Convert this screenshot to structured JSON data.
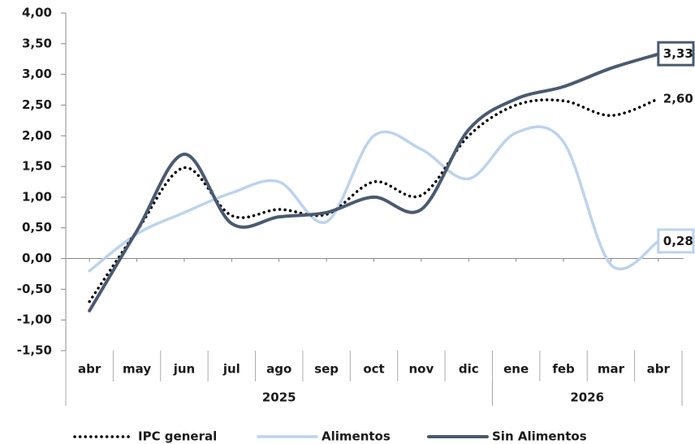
{
  "chart_data": {
    "type": "line",
    "categories": [
      "abr",
      "may",
      "jun",
      "jul",
      "ago",
      "sep",
      "oct",
      "nov",
      "dic",
      "ene",
      "feb",
      "mar",
      "abr"
    ],
    "groups": [
      {
        "label": "2025",
        "span": 9
      },
      {
        "label": "2026",
        "span": 4
      }
    ],
    "ylim": [
      -1.5,
      4.0
    ],
    "yticks": [
      {
        "value": -1.5,
        "label": "-1,50"
      },
      {
        "value": -1.0,
        "label": "-1,00"
      },
      {
        "value": -0.5,
        "label": "-0,50"
      },
      {
        "value": 0,
        "label": "0,00"
      },
      {
        "value": 0.5,
        "label": "0,50"
      },
      {
        "value": 1.0,
        "label": "1,00"
      },
      {
        "value": 1.5,
        "label": "1,50"
      },
      {
        "value": 2.0,
        "label": "2,00"
      },
      {
        "value": 2.5,
        "label": "2,50"
      },
      {
        "value": 3.0,
        "label": "3,00"
      },
      {
        "value": 3.5,
        "label": "3,50"
      },
      {
        "value": 4.0,
        "label": "4,00"
      }
    ],
    "smooth": true,
    "legend": "bottom",
    "series": [
      {
        "name": "IPC general",
        "color": "#000000",
        "style": "dotted",
        "label_box": false,
        "values": [
          -0.7,
          0.45,
          1.48,
          0.7,
          0.8,
          0.72,
          1.25,
          1.03,
          2.0,
          2.5,
          2.57,
          2.33,
          2.6
        ],
        "value_labels": [
          null,
          null,
          null,
          null,
          null,
          null,
          null,
          null,
          null,
          null,
          null,
          null,
          "2,60"
        ]
      },
      {
        "name": "Alimentos",
        "color": "#bcd3ec",
        "style": "solid",
        "label_box": true,
        "values": [
          -0.2,
          0.4,
          0.75,
          1.07,
          1.25,
          0.6,
          2.0,
          1.78,
          1.3,
          2.05,
          1.9,
          -0.1,
          0.28
        ],
        "value_labels": [
          null,
          null,
          null,
          null,
          null,
          null,
          null,
          null,
          null,
          null,
          null,
          null,
          "0,28"
        ]
      },
      {
        "name": "Sin Alimentos",
        "color": "#4a5a70",
        "style": "solid",
        "label_box": true,
        "values": [
          -0.85,
          0.45,
          1.7,
          0.57,
          0.68,
          0.75,
          1.0,
          0.8,
          2.1,
          2.6,
          2.8,
          3.1,
          3.33
        ],
        "value_labels": [
          null,
          null,
          null,
          null,
          null,
          null,
          null,
          null,
          null,
          null,
          null,
          null,
          "3,33"
        ]
      }
    ]
  }
}
